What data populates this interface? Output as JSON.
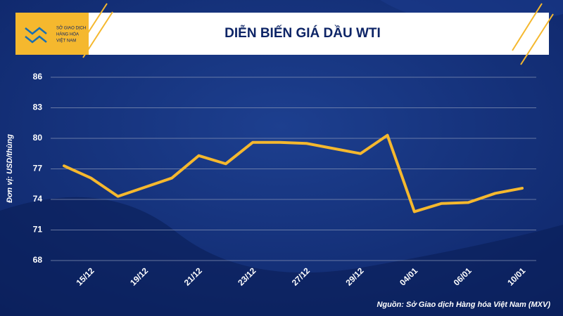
{
  "header": {
    "logo": [
      "SỞ GIAO DỊCH",
      "HÀNG HÓA",
      "VIỆT NAM"
    ]
  },
  "chart_data": {
    "type": "line",
    "title": "DIỄN BIẾN GIÁ DẦU WTI",
    "y_label": "Đơn vị: USD/thùng",
    "categories": [
      null,
      "15/12",
      null,
      "19/12",
      null,
      "21/12",
      null,
      "23/12",
      null,
      "27/12",
      null,
      "29/12",
      null,
      "04/01",
      null,
      "06/01",
      null,
      "10/01"
    ],
    "values": [
      77.3,
      76.1,
      74.3,
      75.2,
      76.1,
      78.3,
      77.5,
      79.6,
      79.6,
      79.5,
      79.0,
      78.5,
      80.3,
      72.8,
      73.6,
      73.7,
      74.6,
      75.1
    ],
    "color": "#f5b82e",
    "ylim": [
      68,
      86
    ],
    "yticks": [
      68,
      71,
      74,
      77,
      80,
      83,
      86
    ],
    "grid": true
  },
  "source": "Nguồn: Sở Giao dịch Hàng hóa Việt Nam (MXV)"
}
